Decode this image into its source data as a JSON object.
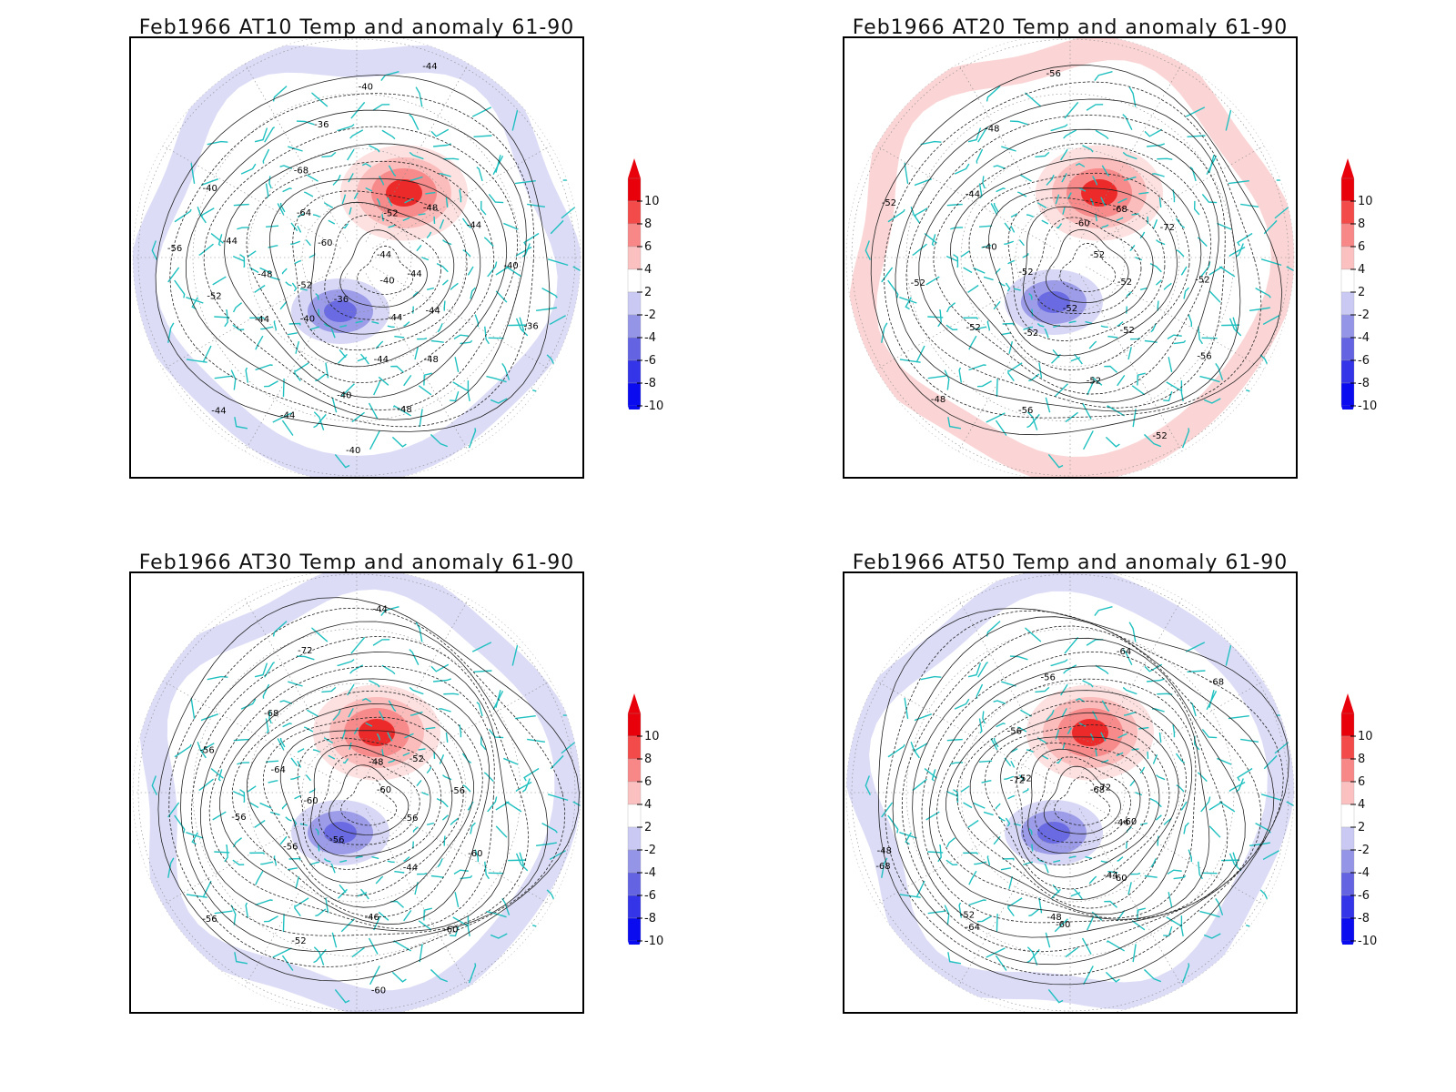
{
  "panels": [
    {
      "id": "at10",
      "title": "Feb1966 AT10 Temp and anomaly 61-90",
      "contour_labels": [
        "-44",
        "-44",
        "-44",
        "-48",
        "-48",
        "-40",
        "-36",
        "-40",
        "-44",
        "-52",
        "-56",
        "-60",
        "-64",
        "-68",
        "-36",
        "-40",
        "-44",
        "-52",
        "-48",
        "-44",
        "-40",
        "-36",
        "-40",
        "-44",
        "-44",
        "-40",
        "-44",
        "-44",
        "-52",
        "-48",
        "-44",
        "-40"
      ]
    },
    {
      "id": "at20",
      "title": "Feb1966 AT20 Temp and anomaly 61-90",
      "contour_labels": [
        "-52",
        "-52",
        "-52",
        "-52",
        "-56",
        "-48",
        "-52",
        "-40",
        "-44",
        "-48",
        "-56",
        "-60",
        "-68",
        "-72",
        "-52",
        "-56",
        "-52",
        "-52",
        "-52",
        "-52",
        "-52",
        "-52"
      ]
    },
    {
      "id": "at30",
      "title": "Feb1966 AT30 Temp and anomaly 61-90",
      "contour_labels": [
        "-60",
        "-56",
        "-44",
        "-46",
        "-52",
        "-56",
        "-60",
        "-64",
        "-68",
        "-72",
        "-44",
        "-48",
        "-52",
        "-56",
        "-60",
        "-60",
        "-60",
        "-56",
        "-56",
        "-56",
        "-56"
      ]
    },
    {
      "id": "at50",
      "title": "Feb1966 AT50 Temp and anomaly 61-90",
      "contour_labels": [
        "-68",
        "-44",
        "-44",
        "-48",
        "-52",
        "-48",
        "-52",
        "-56",
        "-56",
        "-64",
        "-68",
        "-72",
        "-60",
        "-60",
        "-60",
        "-64",
        "-68",
        "-72"
      ]
    }
  ],
  "colorbar": {
    "labels": [
      "10",
      "8",
      "6",
      "4",
      "2",
      "-2",
      "-4",
      "-6",
      "-8",
      "-10"
    ],
    "colors": [
      "#e8000b",
      "#f34a4a",
      "#f88787",
      "#fbc0c0",
      "#ffffff",
      "#c9c9f3",
      "#9595e8",
      "#6464e3",
      "#3434e8",
      "#0b0bf0"
    ],
    "tip_top_color": "#e8000b",
    "tip_bottom_color": "#0b0bf0"
  },
  "colors": {
    "coastline": "#20c0c0",
    "contour": "#222222",
    "warm_anomaly": "#f34a4a",
    "cold_anomaly": "#7b7be8"
  }
}
